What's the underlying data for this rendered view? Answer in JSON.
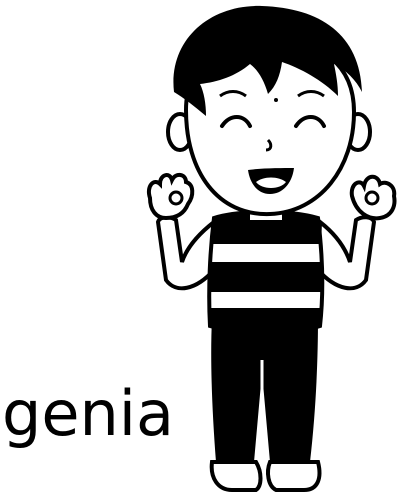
{
  "caption": {
    "text": "genia"
  },
  "illustration": {
    "subject": "boy-clipart",
    "ink_color": "#000000",
    "paper_color": "#ffffff"
  }
}
